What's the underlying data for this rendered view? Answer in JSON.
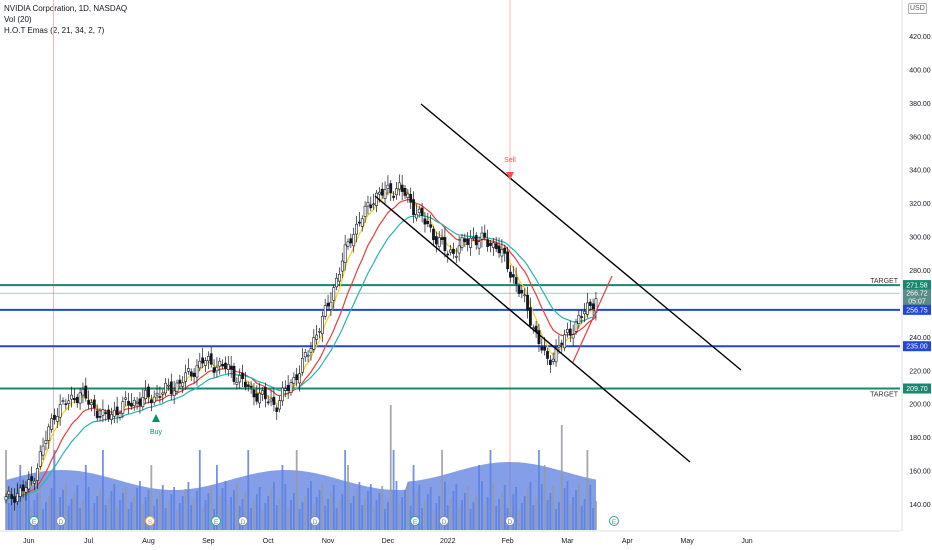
{
  "legend": {
    "symbol_line": "NVIDIA Corporation, 1D, NASDAQ",
    "volume_line": "Vol (20)",
    "ema_line": "H.O.T Emas (2, 21, 34, 2, 7)"
  },
  "currency": "USD",
  "colors": {
    "up": "#ffffff",
    "down": "#131722",
    "ema_yellow": "#f5d020",
    "ema_red": "#ef3a3a",
    "ema_teal": "#26b5ad",
    "blue_line": "#2047d6",
    "green_line": "#17876d",
    "volume_area": "#5b7fe0",
    "volume_bar": "#9598a1",
    "sell": "#ef5350",
    "buy": "#0a8f6a"
  },
  "chart_data": {
    "type": "candlestick",
    "ylim": [
      130,
      420
    ],
    "y_ticks": [
      140,
      160,
      180,
      200,
      220,
      240,
      260,
      280,
      300,
      320,
      340,
      360,
      380,
      400,
      420
    ],
    "x_ticks": [
      "Jun",
      "Jul",
      "Aug",
      "Sep",
      "Oct",
      "Nov",
      "Dec",
      "2022",
      "Feb",
      "Mar",
      "Apr",
      "May",
      "Jun"
    ],
    "x_tick_index": [
      8,
      29,
      50,
      71,
      92,
      113,
      134,
      155,
      176,
      197,
      218,
      239,
      260
    ],
    "grid": false,
    "price_series": [
      {
        "date": "Jun",
        "close": 143
      },
      {
        "date": "Jun mid",
        "close": 152
      },
      {
        "date": "Jul",
        "close": 196
      },
      {
        "date": "Jul mid",
        "close": 207
      },
      {
        "date": "Jul end",
        "close": 192
      },
      {
        "date": "Aug",
        "close": 201
      },
      {
        "date": "Aug mid",
        "close": 205
      },
      {
        "date": "Aug end",
        "close": 212
      },
      {
        "date": "Sep",
        "close": 226
      },
      {
        "date": "Sep mid",
        "close": 222
      },
      {
        "date": "Sep end",
        "close": 208
      },
      {
        "date": "Oct",
        "close": 200
      },
      {
        "date": "Oct mid",
        "close": 222
      },
      {
        "date": "Oct end",
        "close": 255
      },
      {
        "date": "Nov",
        "close": 300
      },
      {
        "date": "Nov mid",
        "close": 325
      },
      {
        "date": "Nov end",
        "close": 330
      },
      {
        "date": "Dec",
        "close": 310
      },
      {
        "date": "Dec mid",
        "close": 290
      },
      {
        "date": "Dec end",
        "close": 300
      },
      {
        "date": "2022",
        "close": 295
      },
      {
        "date": "Jan mid",
        "close": 265
      },
      {
        "date": "Jan end",
        "close": 225
      },
      {
        "date": "Feb",
        "close": 245
      },
      {
        "date": "Feb mid",
        "close": 264.5
      }
    ],
    "horizontal_levels": [
      {
        "value": 271.58,
        "label": "271.58",
        "color": "green",
        "annotation": "TARGET"
      },
      {
        "value": 256.75,
        "label": "256.75",
        "color": "blue"
      },
      {
        "value": 235.0,
        "label": "235.00",
        "color": "blue"
      },
      {
        "value": 209.7,
        "label": "209.70",
        "color": "green",
        "annotation": "TARGET"
      }
    ],
    "price_labels": {
      "last": "266.72",
      "countdown": "05:07"
    },
    "signals": [
      {
        "label": "Sell",
        "date": "2022"
      },
      {
        "label": "Buy",
        "date": "Jul end"
      }
    ],
    "event_markers": [
      "E",
      "D",
      "S",
      "E",
      "D",
      "D",
      "E",
      "D",
      "D",
      "E"
    ]
  }
}
